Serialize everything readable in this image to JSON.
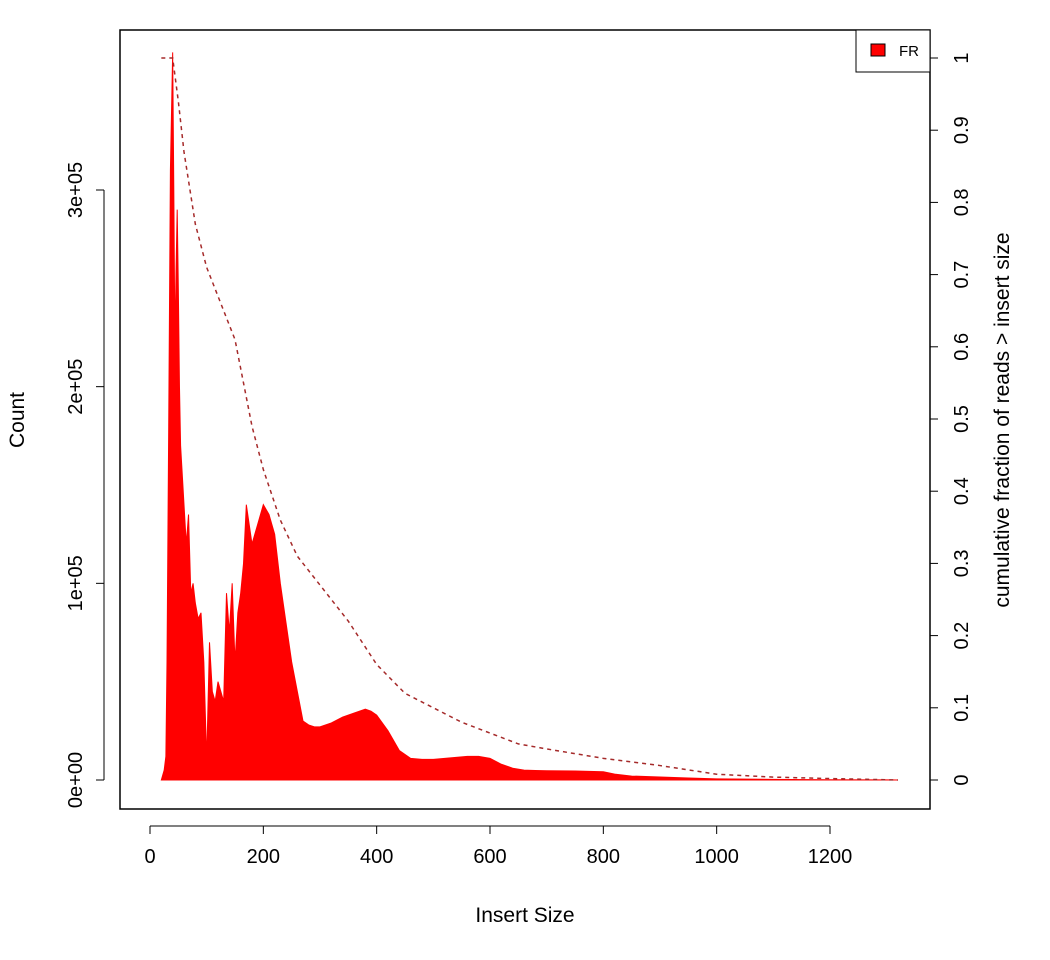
{
  "chart_data": {
    "type": "area",
    "xlabel": "Insert Size",
    "ylabel": "Count",
    "y2label": "cumulative fraction of reads > insert size",
    "xlim": [
      0,
      1320
    ],
    "ylim": [
      0,
      370000
    ],
    "y2lim": [
      0,
      1
    ],
    "x_ticks": [
      0,
      200,
      400,
      600,
      800,
      1000,
      1200
    ],
    "x_tick_labels": [
      "0",
      "200",
      "400",
      "600",
      "800",
      "1000",
      "1200"
    ],
    "y_ticks": [
      0,
      100000,
      200000,
      300000
    ],
    "y_tick_labels": [
      "0e+00",
      "1e+05",
      "2e+05",
      "3e+05"
    ],
    "y2_ticks": [
      0,
      0.1,
      0.2,
      0.3,
      0.4,
      0.5,
      0.6,
      0.7,
      0.8,
      0.9,
      1
    ],
    "y2_tick_labels": [
      "0",
      "0.1",
      "0.2",
      "0.3",
      "0.4",
      "0.5",
      "0.6",
      "0.7",
      "0.8",
      "0.9",
      "1"
    ],
    "legend": {
      "position": "top-right",
      "entries": [
        {
          "label": "FR",
          "color": "#ff0000"
        }
      ]
    },
    "grid": false,
    "series": [
      {
        "name": "FR",
        "kind": "histogram",
        "color": "#ff0000",
        "x": [
          20,
          25,
          28,
          30,
          33,
          36,
          38,
          40,
          42,
          44,
          46,
          48,
          50,
          52,
          54,
          56,
          58,
          60,
          64,
          68,
          72,
          76,
          80,
          85,
          90,
          95,
          100,
          105,
          110,
          115,
          120,
          125,
          130,
          135,
          140,
          145,
          150,
          155,
          160,
          165,
          170,
          180,
          190,
          200,
          210,
          215,
          220,
          230,
          240,
          250,
          260,
          270,
          280,
          290,
          300,
          320,
          340,
          360,
          380,
          390,
          400,
          420,
          440,
          460,
          480,
          500,
          520,
          540,
          560,
          580,
          600,
          620,
          640,
          660,
          680,
          700,
          750,
          800,
          820,
          850,
          900,
          950,
          1000,
          1100,
          1200,
          1300,
          1320
        ],
        "y": [
          0,
          5000,
          12000,
          60000,
          180000,
          310000,
          340000,
          370000,
          300000,
          220000,
          260000,
          290000,
          250000,
          200000,
          170000,
          160000,
          150000,
          140000,
          120000,
          135000,
          95000,
          100000,
          90000,
          82000,
          85000,
          60000,
          10000,
          70000,
          45000,
          40000,
          50000,
          45000,
          40000,
          95000,
          75000,
          100000,
          60000,
          85000,
          95000,
          110000,
          140000,
          120000,
          130000,
          140000,
          135000,
          130000,
          125000,
          100000,
          80000,
          60000,
          45000,
          30000,
          28000,
          27000,
          27000,
          29000,
          32000,
          34000,
          36000,
          35000,
          33000,
          25000,
          15000,
          11000,
          10500,
          10500,
          11000,
          11500,
          12000,
          12000,
          11000,
          8000,
          6000,
          5000,
          4800,
          4700,
          4600,
          4200,
          3000,
          2000,
          1500,
          1000,
          600,
          300,
          100,
          50,
          0
        ]
      },
      {
        "name": "cumulative fraction of reads > insert size",
        "kind": "dashed-line",
        "axis": "right",
        "color": "#a52a2a",
        "x": [
          20,
          28,
          40,
          50,
          60,
          80,
          100,
          125,
          150,
          165,
          180,
          200,
          230,
          260,
          300,
          350,
          400,
          450,
          500,
          550,
          600,
          650,
          700,
          800,
          900,
          1000,
          1100,
          1200,
          1320
        ],
        "y": [
          1.0,
          1.0,
          1.0,
          0.94,
          0.87,
          0.77,
          0.71,
          0.66,
          0.61,
          0.55,
          0.49,
          0.43,
          0.36,
          0.31,
          0.27,
          0.22,
          0.16,
          0.12,
          0.1,
          0.08,
          0.065,
          0.05,
          0.043,
          0.03,
          0.02,
          0.008,
          0.004,
          0.002,
          0.0
        ]
      }
    ]
  }
}
